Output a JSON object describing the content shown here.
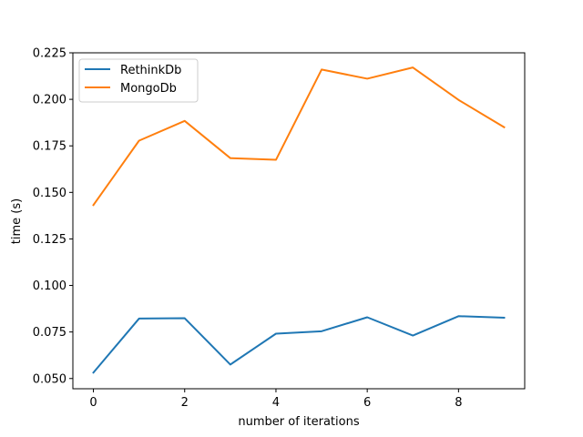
{
  "chart_data": {
    "type": "line",
    "xlabel": "number of iterations",
    "ylabel": "time (s)",
    "x": [
      0,
      1,
      2,
      3,
      4,
      5,
      6,
      7,
      8,
      9
    ],
    "xlim": [
      -0.45,
      9.45
    ],
    "ylim": [
      0.0445,
      0.225
    ],
    "xticks": [
      0,
      2,
      4,
      6,
      8
    ],
    "yticks": [
      0.05,
      0.075,
      0.1,
      0.125,
      0.15,
      0.175,
      0.2,
      0.225
    ],
    "grid": false,
    "legend_position": "upper-left",
    "series": [
      {
        "name": "RethinkDb",
        "color": "#1f77b4",
        "values": [
          0.0532,
          0.0822,
          0.0824,
          0.0575,
          0.0741,
          0.0754,
          0.0829,
          0.0731,
          0.0835,
          0.0827
        ]
      },
      {
        "name": "MongoDb",
        "color": "#ff7f0e",
        "values": [
          0.1432,
          0.1778,
          0.1884,
          0.1684,
          0.1675,
          0.216,
          0.2111,
          0.2171,
          0.1997,
          0.185
        ]
      }
    ]
  }
}
